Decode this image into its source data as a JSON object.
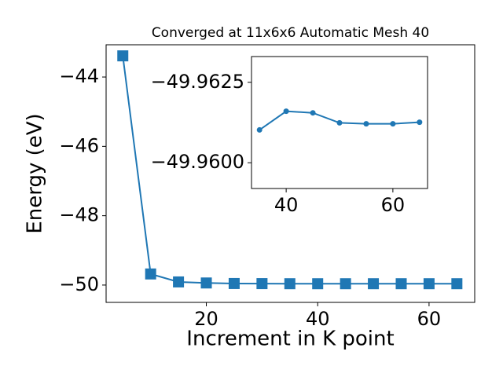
{
  "chart_data": [
    {
      "type": "line",
      "title": "Converged at 11x6x6 Automatic Mesh 40",
      "x_label": "Increment in K point",
      "y_label": "Energy (eV)",
      "x": [
        5,
        10,
        15,
        20,
        25,
        30,
        35,
        40,
        45,
        50,
        55,
        60,
        65
      ],
      "series": [
        {
          "color": "#1f77b4",
          "marker": "square",
          "values": [
            -43.39,
            -49.68,
            -49.91,
            -49.94,
            -49.955,
            -49.958,
            -49.96102,
            -49.9616,
            -49.96155,
            -49.96124,
            -49.96121,
            -49.96121,
            -49.96126
          ]
        }
      ],
      "xlim": [
        2,
        68.2
      ],
      "ylim": [
        -50.5,
        -43.07
      ],
      "xticks": [
        20,
        40,
        60
      ],
      "yticks": [
        {
          "value": -50,
          "label": "−50"
        },
        {
          "value": -48,
          "label": "−48"
        },
        {
          "value": -46,
          "label": "−46"
        },
        {
          "value": -44,
          "label": "−44"
        }
      ],
      "grid": false
    },
    {
      "type": "line",
      "x": [
        35,
        40,
        45,
        50,
        55,
        60,
        65
      ],
      "series": [
        {
          "color": "#1f77b4",
          "marker": "circle",
          "values": [
            -49.96102,
            -49.9616,
            -49.96155,
            -49.96124,
            -49.96121,
            -49.96121,
            -49.96126
          ]
        }
      ],
      "xlim": [
        33.5,
        66.5
      ],
      "ylim": [
        -49.9592,
        -49.9633
      ],
      "xticks": [
        40,
        60
      ],
      "yticks": [
        {
          "value": -49.96,
          "label": "−49.9600"
        },
        {
          "value": -49.9625,
          "label": "−49.9625"
        }
      ],
      "grid": false
    }
  ]
}
